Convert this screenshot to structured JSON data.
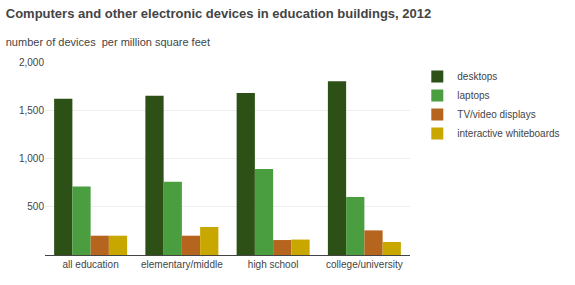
{
  "chart_data": {
    "type": "bar",
    "title": "Computers and other electronic devices in education buildings, 2012",
    "subtitle": "number of devices  per million square feet",
    "categories": [
      "all education",
      "elementary/middle",
      "high school",
      "college/university"
    ],
    "series": [
      {
        "name": "desktops",
        "color": "#2d5016",
        "values": [
          1620,
          1650,
          1680,
          1800
        ]
      },
      {
        "name": "laptops",
        "color": "#4a9e3f",
        "values": [
          710,
          760,
          890,
          600
        ]
      },
      {
        "name": "TV/video displays",
        "color": "#b5651d",
        "values": [
          200,
          200,
          155,
          255
        ]
      },
      {
        "name": "interactive whiteboards",
        "color": "#c8a800",
        "values": [
          200,
          290,
          160,
          135
        ]
      }
    ],
    "ylim": [
      0,
      2000
    ],
    "yticks": [
      500,
      {
        "value": 1000,
        "label": "1,000"
      },
      {
        "value": 1500,
        "label": "1,500"
      },
      {
        "value": 2000,
        "label": "2,000"
      }
    ],
    "grid": true,
    "legend": "right"
  }
}
